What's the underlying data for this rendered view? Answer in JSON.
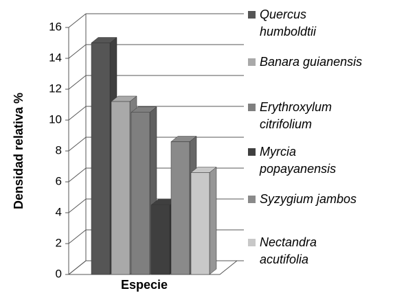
{
  "chart_data": {
    "type": "bar",
    "x_label": "Especie",
    "y_label": "Densidad relativa %",
    "ylim": [
      0,
      16
    ],
    "yticks": [
      0,
      2,
      4,
      6,
      8,
      10,
      12,
      14,
      16
    ],
    "grid": true,
    "series": [
      {
        "name": "Quercus humboldtii",
        "color": "#555555",
        "values": [
          15
        ]
      },
      {
        "name": "Banara guianensis",
        "color": "#a9a9a9",
        "values": [
          11.2
        ]
      },
      {
        "name": "Erythroxylum citrifolium",
        "color": "#7f7f7f",
        "values": [
          10.5
        ]
      },
      {
        "name": "Myrcia popayanensis",
        "color": "#3f3f3f",
        "values": [
          4.5
        ]
      },
      {
        "name": "Syzygium jambos",
        "color": "#8a8a8a",
        "values": [
          8.6
        ]
      },
      {
        "name": "Nectandra acutifolia",
        "color": "#c8c8c8",
        "values": [
          6.6
        ]
      }
    ]
  }
}
